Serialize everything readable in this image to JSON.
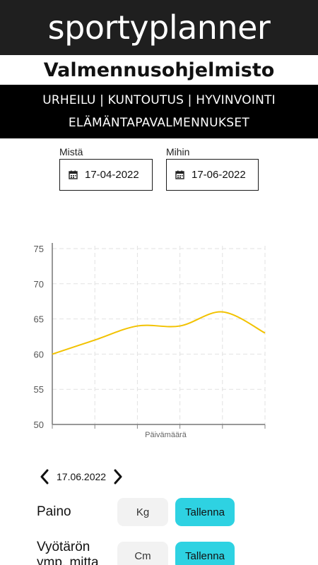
{
  "header": {
    "brand": "sportyplanner",
    "subtitle": "Valmennusohjelmisto",
    "tagline_line1": "URHEILU | KUNTOUTUS  | HYVINVOINTI",
    "tagline_line2": "ELÄMÄNTAPAVALMENNUKSET"
  },
  "filters": {
    "from_label": "Mistä",
    "from_date": "17-04-2022",
    "to_label": "Mihin",
    "to_date": "17-06-2022",
    "icon": "calendar-icon"
  },
  "chart_data": {
    "type": "line",
    "xlabel": "Päivämäärä",
    "ylabel": "",
    "ylim": [
      50,
      75
    ],
    "yticks": [
      50,
      55,
      60,
      65,
      70,
      75
    ],
    "grid": true,
    "series": [
      {
        "color": "#f2c200",
        "x": [
          0,
          1,
          2,
          3,
          4,
          5
        ],
        "values": [
          60,
          62,
          64,
          64,
          66,
          63
        ]
      }
    ]
  },
  "day_nav": {
    "date": "17.06.2022",
    "prev_icon": "chevron-left-icon",
    "next_icon": "chevron-right-icon"
  },
  "measurements": [
    {
      "label": "Paino",
      "unit": "Kg",
      "button": "Tallenna"
    },
    {
      "label": "Vyötärön\nymp. mitta",
      "unit": "Cm",
      "button": "Tallenna"
    }
  ],
  "colors": {
    "accent": "#2ed2e2",
    "line": "#f2c200",
    "brand_bar": "#1f1f1f"
  }
}
